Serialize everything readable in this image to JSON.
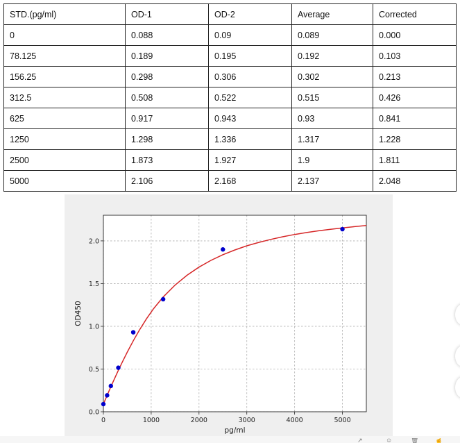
{
  "table": {
    "headers": [
      "STD.(pg/ml)",
      "OD-1",
      "OD-2",
      "Average",
      "Corrected"
    ],
    "rows": [
      [
        "0",
        "0.088",
        "0.09",
        "0.089",
        "0.000"
      ],
      [
        "78.125",
        "0.189",
        "0.195",
        "0.192",
        "0.103"
      ],
      [
        "156.25",
        "0.298",
        "0.306",
        "0.302",
        "0.213"
      ],
      [
        "312.5",
        "0.508",
        "0.522",
        "0.515",
        "0.426"
      ],
      [
        "625",
        "0.917",
        "0.943",
        "0.93",
        "0.841"
      ],
      [
        "1250",
        "1.298",
        "1.336",
        "1.317",
        "1.228"
      ],
      [
        "2500",
        "1.873",
        "1.927",
        "1.9",
        "1.811"
      ],
      [
        "5000",
        "2.106",
        "2.168",
        "2.137",
        "2.048"
      ]
    ]
  },
  "chart_data": {
    "type": "scatter",
    "title": "",
    "xlabel": "pg/ml",
    "ylabel": "OD450",
    "xlim": [
      0,
      5500
    ],
    "ylim": [
      0,
      2.3
    ],
    "xticks": [
      0,
      1000,
      2000,
      3000,
      4000,
      5000
    ],
    "yticks": [
      0.0,
      0.5,
      1.0,
      1.5,
      2.0
    ],
    "xtick_labels": [
      "0",
      "1000",
      "2000",
      "3000",
      "4000",
      "5000"
    ],
    "ytick_labels": [
      "0.0",
      "0.5",
      "1.0",
      "1.5",
      "2.0"
    ],
    "grid": true,
    "points": {
      "x": [
        0,
        78.125,
        156.25,
        312.5,
        625,
        1250,
        2500,
        5000
      ],
      "y": [
        0.089,
        0.192,
        0.302,
        0.515,
        0.93,
        1.317,
        1.9,
        2.137
      ],
      "color": "#0000cc"
    },
    "fit_curve": {
      "color": "#d62728",
      "x": [
        0,
        50,
        100,
        150,
        200,
        300,
        400,
        500,
        625,
        750,
        900,
        1050,
        1250,
        1500,
        1750,
        2000,
        2250,
        2500,
        2750,
        3000,
        3250,
        3500,
        3750,
        4000,
        4250,
        4500,
        4750,
        5000,
        5250,
        5500
      ],
      "y": [
        0.089,
        0.154,
        0.22,
        0.284,
        0.347,
        0.47,
        0.587,
        0.699,
        0.831,
        0.953,
        1.087,
        1.207,
        1.343,
        1.483,
        1.598,
        1.693,
        1.772,
        1.838,
        1.894,
        1.942,
        1.982,
        2.017,
        2.048,
        2.075,
        2.098,
        2.118,
        2.136,
        2.152,
        2.167,
        2.18
      ]
    }
  },
  "side_buttons": [
    "circle-button",
    "circle-button",
    "circle-button"
  ],
  "bottom_toolbar_icons": [
    "share-icon",
    "emoji-icon",
    "trash-icon",
    "thumb-icon"
  ]
}
